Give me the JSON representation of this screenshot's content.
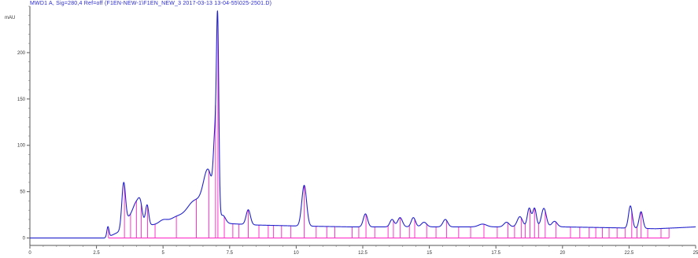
{
  "chart_data": {
    "type": "line",
    "title": "MWD1 A, Sig=280,4 Ref=off (F1EN-NEW-1\\F1EN_NEW_3 2017-03-13 13-04-55\\025-2501.D)",
    "unit_label": "mAU",
    "xlabel": "",
    "ylabel": "",
    "xlim": [
      0,
      25
    ],
    "ylim": [
      -8,
      250
    ],
    "x_ticks": [
      0,
      2.5,
      5,
      7.5,
      10,
      12.5,
      15,
      17.5,
      20,
      22.5,
      25
    ],
    "x_tick_labels": [
      "0",
      "2.5",
      "5",
      "7.5",
      "10",
      "12.5",
      "15",
      "17.5",
      "20",
      "22.5",
      "25"
    ],
    "y_ticks": [
      0,
      50,
      100,
      150,
      200
    ],
    "y_tick_labels": [
      "0",
      "50",
      "100",
      "150",
      "200"
    ],
    "grid": false,
    "series": [
      {
        "color": "#2222cc",
        "baseline": [
          [
            0,
            0
          ],
          [
            2.8,
            0
          ],
          [
            3.0,
            2
          ],
          [
            3.3,
            6
          ],
          [
            3.6,
            9
          ],
          [
            4.0,
            12
          ],
          [
            4.5,
            14
          ],
          [
            5.5,
            16
          ],
          [
            7.2,
            16
          ],
          [
            8.5,
            14
          ],
          [
            10,
            13
          ],
          [
            12,
            12
          ],
          [
            14,
            12
          ],
          [
            16,
            12
          ],
          [
            18,
            12
          ],
          [
            20,
            12
          ],
          [
            22,
            11
          ],
          [
            23.5,
            10
          ],
          [
            24.3,
            11
          ],
          [
            25,
            12
          ]
        ],
        "peaks": [
          {
            "rt": 2.93,
            "height": 11,
            "width": 0.04
          },
          {
            "rt": 3.52,
            "height": 48,
            "width": 0.07
          },
          {
            "rt": 3.75,
            "height": 12,
            "width": 0.15
          },
          {
            "rt": 4.0,
            "height": 22,
            "width": 0.12
          },
          {
            "rt": 4.15,
            "height": 18,
            "width": 0.08
          },
          {
            "rt": 4.4,
            "height": 22,
            "width": 0.06
          },
          {
            "rt": 5.0,
            "height": 4,
            "width": 0.15
          },
          {
            "rt": 5.5,
            "height": 6,
            "width": 0.25
          },
          {
            "rt": 6.2,
            "height": 24,
            "width": 0.3
          },
          {
            "rt": 6.7,
            "height": 52,
            "width": 0.18
          },
          {
            "rt": 6.95,
            "height": 72,
            "width": 0.06
          },
          {
            "rt": 7.05,
            "height": 200,
            "width": 0.045
          },
          {
            "rt": 7.25,
            "height": 8,
            "width": 0.1
          },
          {
            "rt": 8.2,
            "height": 16,
            "width": 0.08
          },
          {
            "rt": 10.3,
            "height": 44,
            "width": 0.09
          },
          {
            "rt": 12.6,
            "height": 14,
            "width": 0.08
          },
          {
            "rt": 13.6,
            "height": 8,
            "width": 0.08
          },
          {
            "rt": 13.9,
            "height": 10,
            "width": 0.09
          },
          {
            "rt": 14.4,
            "height": 10,
            "width": 0.08
          },
          {
            "rt": 14.8,
            "height": 5,
            "width": 0.1
          },
          {
            "rt": 15.6,
            "height": 8,
            "width": 0.09
          },
          {
            "rt": 17.0,
            "height": 3,
            "width": 0.15
          },
          {
            "rt": 17.9,
            "height": 5,
            "width": 0.1
          },
          {
            "rt": 18.4,
            "height": 11,
            "width": 0.1
          },
          {
            "rt": 18.75,
            "height": 20,
            "width": 0.07
          },
          {
            "rt": 18.95,
            "height": 20,
            "width": 0.07
          },
          {
            "rt": 19.3,
            "height": 20,
            "width": 0.09
          },
          {
            "rt": 19.7,
            "height": 6,
            "width": 0.1
          },
          {
            "rt": 22.55,
            "height": 24,
            "width": 0.07
          },
          {
            "rt": 22.95,
            "height": 18,
            "width": 0.07
          }
        ]
      }
    ],
    "integration_marks": {
      "color": "#ff33cc",
      "retention_times": [
        2.95,
        3.55,
        3.78,
        4.0,
        4.18,
        4.42,
        4.7,
        5.5,
        6.25,
        6.72,
        6.97,
        7.06,
        7.3,
        7.62,
        7.85,
        8.2,
        8.6,
        8.95,
        9.15,
        9.45,
        9.8,
        10.3,
        10.75,
        11.15,
        11.45,
        12.1,
        12.35,
        12.62,
        12.95,
        13.45,
        13.65,
        13.9,
        14.25,
        14.45,
        14.9,
        15.25,
        15.65,
        16.1,
        16.55,
        17.05,
        17.55,
        17.95,
        18.2,
        18.45,
        18.6,
        18.78,
        18.95,
        19.1,
        19.35,
        19.75,
        20.3,
        20.65,
        21.0,
        21.25,
        21.5,
        21.75,
        22.05,
        22.35,
        22.6,
        22.8,
        22.95,
        23.2,
        23.7,
        24.0
      ]
    }
  }
}
